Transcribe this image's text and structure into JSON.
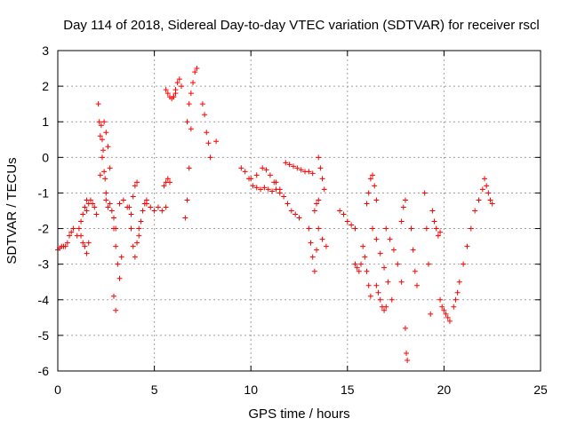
{
  "chart_data": {
    "type": "scatter",
    "title": "Day 114 of 2018, Sidereal Day-to-day VTEC variation (SDTVAR) for receiver rscl",
    "xlabel": "GPS time / hours",
    "ylabel": "SDTVAR / TECUs",
    "xlim": [
      0,
      25
    ],
    "ylim": [
      -6,
      3
    ],
    "xticks": [
      0,
      5,
      10,
      15,
      20,
      25
    ],
    "yticks": [
      -6,
      -5,
      -4,
      -3,
      -2,
      -1,
      0,
      1,
      2,
      3
    ],
    "xtick_labels": [
      "0",
      "5",
      "10",
      "15",
      "20",
      "25"
    ],
    "ytick_labels": [
      "-6",
      "-5",
      "-4",
      "-3",
      "-2",
      "-1",
      "0",
      "1",
      "2",
      "3"
    ],
    "grid": true,
    "marker": "+",
    "color": "#ff0000",
    "series": [
      {
        "name": "s1",
        "x": [
          0.0,
          0.1,
          0.2,
          0.3
        ],
        "y": [
          -2.6,
          -2.55,
          -2.5,
          -2.5
        ]
      },
      {
        "name": "s2",
        "x": [
          0.4,
          0.5,
          0.6,
          0.7,
          0.8
        ],
        "y": [
          -2.5,
          -2.4,
          -2.2,
          -2.1,
          -2.0
        ]
      },
      {
        "name": "s3",
        "x": [
          1.0,
          1.1,
          1.2,
          1.3,
          1.4,
          1.5
        ],
        "y": [
          -2.2,
          -2.0,
          -1.8,
          -1.6,
          -1.4,
          -1.2
        ]
      },
      {
        "name": "s4",
        "x": [
          1.2,
          1.3,
          1.4,
          1.5,
          1.6
        ],
        "y": [
          -2.2,
          -2.4,
          -2.5,
          -2.7,
          -2.4
        ]
      },
      {
        "name": "s5",
        "x": [
          1.5,
          1.6,
          1.7,
          1.8,
          1.9,
          2.0
        ],
        "y": [
          -1.5,
          -1.3,
          -1.2,
          -1.3,
          -1.4,
          -1.6
        ]
      },
      {
        "name": "s6",
        "x": [
          2.1,
          2.15,
          2.2,
          2.25,
          2.3,
          2.35,
          2.4,
          2.45,
          2.5
        ],
        "y": [
          1.5,
          1.0,
          0.6,
          0.9,
          0.5,
          0.2,
          -0.4,
          -0.6,
          -1.0
        ]
      },
      {
        "name": "s7",
        "x": [
          2.2,
          2.3,
          2.4,
          2.5,
          2.6,
          2.7
        ],
        "y": [
          -0.5,
          0.0,
          1.0,
          0.7,
          0.3,
          -0.3
        ]
      },
      {
        "name": "s8",
        "x": [
          2.5,
          2.6,
          2.7,
          2.8,
          2.9,
          3.0
        ],
        "y": [
          -1.2,
          -1.4,
          -1.3,
          -1.5,
          -1.7,
          -2.0
        ]
      },
      {
        "name": "s9",
        "x": [
          2.9,
          3.0,
          3.1,
          3.2,
          3.3
        ],
        "y": [
          -2.0,
          -2.5,
          -3.0,
          -3.4,
          -2.8
        ]
      },
      {
        "name": "s10",
        "x": [
          2.9,
          3.0
        ],
        "y": [
          -3.9,
          -4.3
        ]
      },
      {
        "name": "s11",
        "x": [
          3.2,
          3.4,
          3.6,
          3.8
        ],
        "y": [
          -1.3,
          -1.2,
          -1.4,
          -1.6
        ]
      },
      {
        "name": "s12",
        "x": [
          3.7,
          3.8,
          3.9,
          4.0,
          4.1,
          4.2
        ],
        "y": [
          -1.4,
          -2.0,
          -2.5,
          -2.8,
          -2.4,
          -2.2
        ]
      },
      {
        "name": "s13",
        "x": [
          3.9,
          4.0,
          4.1
        ],
        "y": [
          -1.1,
          -0.8,
          -0.7
        ]
      },
      {
        "name": "s14",
        "x": [
          4.2,
          4.3,
          4.4,
          4.5,
          4.6
        ],
        "y": [
          -2.0,
          -1.8,
          -1.5,
          -1.3,
          -1.2
        ]
      },
      {
        "name": "s15",
        "x": [
          4.6,
          4.8,
          5.0,
          5.2,
          5.4,
          5.6
        ],
        "y": [
          -1.3,
          -1.4,
          -1.5,
          -1.4,
          -1.5,
          -1.4
        ]
      },
      {
        "name": "s16",
        "x": [
          5.5,
          5.6,
          5.7,
          5.8
        ],
        "y": [
          -0.8,
          -0.7,
          -0.6,
          -0.7
        ]
      },
      {
        "name": "s17",
        "x": [
          5.6,
          5.7,
          5.8,
          5.9,
          6.0,
          6.1
        ],
        "y": [
          1.9,
          1.8,
          1.7,
          1.65,
          1.7,
          1.8
        ]
      },
      {
        "name": "s18",
        "x": [
          6.0,
          6.1,
          6.2,
          6.3,
          6.4
        ],
        "y": [
          1.7,
          1.9,
          2.1,
          2.2,
          2.0
        ]
      },
      {
        "name": "s19",
        "x": [
          6.6,
          6.7,
          6.8,
          6.9
        ],
        "y": [
          -1.7,
          -1.2,
          -0.3,
          0.8
        ]
      },
      {
        "name": "s20",
        "x": [
          6.7,
          6.8,
          6.9,
          7.0,
          7.1,
          7.2
        ],
        "y": [
          1.0,
          1.5,
          1.8,
          2.1,
          2.4,
          2.5
        ]
      },
      {
        "name": "s21",
        "x": [
          7.5,
          7.6,
          7.7,
          7.8,
          7.9
        ],
        "y": [
          1.5,
          1.2,
          0.7,
          0.4,
          0.0
        ]
      },
      {
        "name": "s22",
        "x": [
          8.2
        ],
        "y": [
          0.45
        ]
      },
      {
        "name": "s23",
        "x": [
          9.5,
          9.7,
          9.9,
          10.1,
          10.3,
          10.5,
          10.7,
          10.9,
          11.1,
          11.3,
          11.5
        ],
        "y": [
          -0.3,
          -0.4,
          -0.6,
          -0.8,
          -0.85,
          -0.9,
          -0.85,
          -0.9,
          -0.95,
          -0.9,
          -1.0
        ]
      },
      {
        "name": "s24",
        "x": [
          10.0,
          10.3,
          10.6,
          10.8,
          11.0,
          11.2
        ],
        "y": [
          -0.6,
          -0.5,
          -0.3,
          -0.35,
          -0.5,
          -0.7
        ]
      },
      {
        "name": "s25",
        "x": [
          11.3,
          11.5,
          11.7,
          11.9,
          12.1,
          12.3,
          12.5
        ],
        "y": [
          -0.7,
          -0.9,
          -1.1,
          -1.3,
          -1.5,
          -1.6,
          -1.7
        ]
      },
      {
        "name": "s26",
        "x": [
          11.8,
          12.0,
          12.2,
          12.4,
          12.6,
          12.8,
          13.0,
          13.2
        ],
        "y": [
          -0.15,
          -0.2,
          -0.25,
          -0.3,
          -0.35,
          -0.4,
          -0.4,
          -0.45
        ]
      },
      {
        "name": "s27",
        "x": [
          13.0,
          13.1,
          13.2,
          13.3,
          13.4
        ],
        "y": [
          -2.0,
          -2.4,
          -2.8,
          -3.2,
          -2.6
        ]
      },
      {
        "name": "s28",
        "x": [
          13.3,
          13.4,
          13.5
        ],
        "y": [
          -1.5,
          -1.3,
          -1.2
        ]
      },
      {
        "name": "s29",
        "x": [
          13.5,
          13.6,
          13.7,
          13.8
        ],
        "y": [
          0.0,
          -0.3,
          -0.6,
          -0.9
        ]
      },
      {
        "name": "s30",
        "x": [
          13.5,
          13.7,
          13.9
        ],
        "y": [
          -2.0,
          -2.3,
          -2.5
        ]
      },
      {
        "name": "s31",
        "x": [
          14.6,
          14.8,
          15.0,
          15.2,
          15.4
        ],
        "y": [
          -1.5,
          -1.6,
          -1.8,
          -1.9,
          -2.0
        ]
      },
      {
        "name": "s32",
        "x": [
          15.4,
          15.5,
          15.6,
          15.7
        ],
        "y": [
          -3.0,
          -3.1,
          -3.2,
          -3.0
        ]
      },
      {
        "name": "s33",
        "x": [
          15.8,
          15.9,
          16.0,
          16.1,
          16.2
        ],
        "y": [
          -2.5,
          -2.8,
          -3.2,
          -3.6,
          -3.9
        ]
      },
      {
        "name": "s34",
        "x": [
          16.0,
          16.1,
          16.2,
          16.3,
          16.4,
          16.5
        ],
        "y": [
          -1.3,
          -1.0,
          -0.6,
          -0.5,
          -0.8,
          -1.2
        ]
      },
      {
        "name": "s35",
        "x": [
          16.3,
          16.5,
          16.7,
          16.9,
          17.1,
          17.3
        ],
        "y": [
          -2.0,
          -2.3,
          -2.7,
          -3.1,
          -3.5,
          -4.0
        ]
      },
      {
        "name": "s36",
        "x": [
          16.5,
          16.6,
          16.7,
          16.8,
          16.9,
          17.0
        ],
        "y": [
          -3.6,
          -3.8,
          -4.0,
          -4.2,
          -4.3,
          -4.2
        ]
      },
      {
        "name": "s37",
        "x": [
          17.0,
          17.2,
          17.4,
          17.6,
          17.8
        ],
        "y": [
          -2.0,
          -2.3,
          -2.6,
          -3.0,
          -3.5
        ]
      },
      {
        "name": "s38",
        "x": [
          17.8,
          17.9,
          18.0
        ],
        "y": [
          -1.8,
          -1.4,
          -1.2
        ]
      },
      {
        "name": "s39",
        "x": [
          18.0,
          18.05,
          18.1
        ],
        "y": [
          -4.8,
          -5.5,
          -5.7
        ]
      },
      {
        "name": "s40",
        "x": [
          18.3,
          18.4,
          18.5,
          18.6
        ],
        "y": [
          -2.0,
          -2.6,
          -3.2,
          -3.6
        ]
      },
      {
        "name": "s41",
        "x": [
          19.0,
          19.1,
          19.2,
          19.3
        ],
        "y": [
          -1.0,
          -2.0,
          -3.0,
          -4.4
        ]
      },
      {
        "name": "s42",
        "x": [
          19.4,
          19.5,
          19.6,
          19.7,
          19.8
        ],
        "y": [
          -1.5,
          -1.8,
          -2.0,
          -2.2,
          -2.1
        ]
      },
      {
        "name": "s43",
        "x": [
          19.8,
          19.9,
          20.0,
          20.1,
          20.2,
          20.3
        ],
        "y": [
          -4.0,
          -4.2,
          -4.3,
          -4.4,
          -4.5,
          -4.6
        ]
      },
      {
        "name": "s44",
        "x": [
          20.5,
          20.6,
          20.7,
          20.8,
          21.0
        ],
        "y": [
          -4.2,
          -4.0,
          -3.8,
          -3.5,
          -3.0
        ]
      },
      {
        "name": "s45",
        "x": [
          21.2,
          21.4,
          21.6,
          21.8,
          22.0
        ],
        "y": [
          -2.5,
          -2.0,
          -1.5,
          -1.2,
          -0.9
        ]
      },
      {
        "name": "s46",
        "x": [
          22.1,
          22.2,
          22.3,
          22.4,
          22.5
        ],
        "y": [
          -0.6,
          -0.8,
          -1.0,
          -1.2,
          -1.3
        ]
      }
    ]
  }
}
